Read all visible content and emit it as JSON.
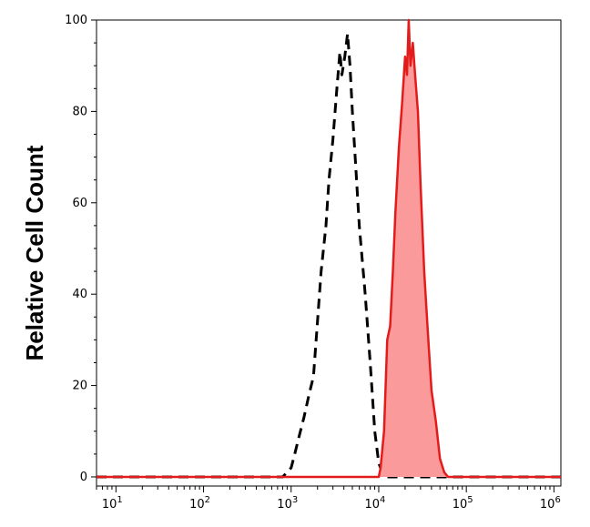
{
  "chart_data": {
    "type": "area",
    "title": "",
    "xlabel": "",
    "ylabel": "Relative Cell Count",
    "x_scale": "log",
    "xlim": [
      6,
      1200000
    ],
    "ylim": [
      -2,
      100
    ],
    "x_ticks": [
      {
        "value": 10,
        "base": "10",
        "exp": "1"
      },
      {
        "value": 100,
        "base": "10",
        "exp": "2"
      },
      {
        "value": 1000,
        "base": "10",
        "exp": "3"
      },
      {
        "value": 10000,
        "base": "10",
        "exp": "4"
      },
      {
        "value": 100000,
        "base": "10",
        "exp": "5"
      },
      {
        "value": 1000000,
        "base": "10",
        "exp": "6"
      }
    ],
    "y_ticks": [
      0,
      20,
      40,
      60,
      80,
      100
    ],
    "grid": false,
    "legend": "none",
    "series": [
      {
        "style": "dashed",
        "color": "#000000",
        "fill": "none",
        "points": [
          [
            6,
            0
          ],
          [
            800,
            0
          ],
          [
            900,
            1
          ],
          [
            1000,
            2
          ],
          [
            1100,
            5
          ],
          [
            1200,
            8
          ],
          [
            1400,
            13
          ],
          [
            1600,
            18
          ],
          [
            1800,
            22
          ],
          [
            2000,
            34
          ],
          [
            2200,
            45
          ],
          [
            2500,
            55
          ],
          [
            2700,
            65
          ],
          [
            3000,
            74
          ],
          [
            3300,
            84
          ],
          [
            3600,
            93
          ],
          [
            3800,
            88
          ],
          [
            4100,
            92
          ],
          [
            4400,
            97
          ],
          [
            4700,
            90
          ],
          [
            5000,
            80
          ],
          [
            5500,
            67
          ],
          [
            6000,
            55
          ],
          [
            7000,
            40
          ],
          [
            8000,
            25
          ],
          [
            9000,
            10
          ],
          [
            10000,
            3
          ],
          [
            11000,
            1
          ],
          [
            12000,
            0
          ],
          [
            1200000,
            0
          ]
        ]
      },
      {
        "style": "solid",
        "color": "#e41b1b",
        "fill": "#fb9a9a",
        "points": [
          [
            6,
            0
          ],
          [
            10000,
            0
          ],
          [
            10500,
            2
          ],
          [
            11500,
            10
          ],
          [
            12500,
            30
          ],
          [
            13500,
            33
          ],
          [
            14500,
            45
          ],
          [
            15500,
            58
          ],
          [
            17000,
            72
          ],
          [
            18500,
            82
          ],
          [
            20000,
            92
          ],
          [
            21000,
            88
          ],
          [
            22000,
            100
          ],
          [
            23000,
            90
          ],
          [
            24500,
            95
          ],
          [
            26000,
            88
          ],
          [
            28000,
            80
          ],
          [
            30000,
            64
          ],
          [
            33000,
            45
          ],
          [
            36000,
            33
          ],
          [
            40000,
            19
          ],
          [
            45000,
            12
          ],
          [
            50000,
            4
          ],
          [
            56000,
            1
          ],
          [
            62000,
            0
          ],
          [
            1200000,
            0
          ]
        ]
      }
    ]
  }
}
